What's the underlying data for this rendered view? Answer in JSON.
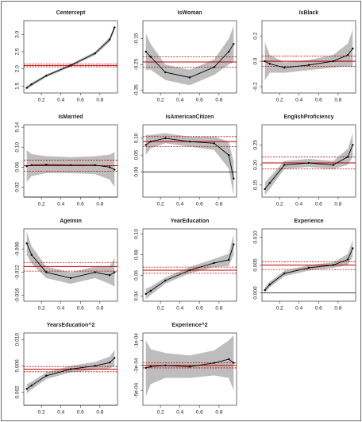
{
  "chart_data": [
    {
      "type": "line",
      "title": "Centercept",
      "x": [
        0.05,
        0.1,
        0.25,
        0.5,
        0.75,
        0.9,
        0.95
      ],
      "values": [
        1.45,
        1.55,
        1.8,
        2.1,
        2.45,
        2.85,
        3.2
      ],
      "lower": [
        1.4,
        1.5,
        1.76,
        2.06,
        2.4,
        2.78,
        3.1
      ],
      "upper": [
        1.5,
        1.6,
        1.84,
        2.14,
        2.5,
        2.92,
        3.3
      ],
      "ols": 2.1,
      "ols_ci": [
        2.06,
        2.14
      ],
      "xlim": [
        0.02,
        0.98
      ],
      "ylim": [
        1.3,
        3.4
      ],
      "xticks": [
        0.2,
        0.4,
        0.6,
        0.8
      ],
      "yticks": [
        {
          "value": 1.5,
          "label": "1.5"
        },
        {
          "value": 2.0,
          "label": "2.0"
        },
        {
          "value": 2.5,
          "label": "2.5"
        },
        {
          "value": 3.0,
          "label": "3.0"
        }
      ],
      "line_color": "#000000",
      "band_color": "#bdbdbd",
      "ols_color": "#c00000"
    },
    {
      "type": "line",
      "title": "IsWoman",
      "x": [
        0.05,
        0.1,
        0.25,
        0.5,
        0.75,
        0.9,
        0.95
      ],
      "values": [
        -0.2,
        -0.22,
        -0.28,
        -0.3,
        -0.26,
        -0.2,
        -0.17
      ],
      "lower": [
        -0.27,
        -0.27,
        -0.31,
        -0.33,
        -0.29,
        -0.25,
        -0.24
      ],
      "upper": [
        -0.13,
        -0.17,
        -0.25,
        -0.27,
        -0.23,
        -0.15,
        -0.1
      ],
      "ols": -0.24,
      "ols_ci": [
        -0.26,
        -0.22
      ],
      "xlim": [
        0.02,
        0.98
      ],
      "ylim": [
        -0.36,
        -0.08
      ],
      "xticks": [
        0.2,
        0.4,
        0.6,
        0.8
      ],
      "yticks": [
        -0.35,
        -0.25,
        -0.15
      ],
      "line_color": "#000000",
      "band_color": "#bdbdbd",
      "ols_color": "#c00000"
    },
    {
      "type": "line",
      "title": "IsBlack",
      "x": [
        0.05,
        0.1,
        0.25,
        0.5,
        0.75,
        0.9,
        0.95
      ],
      "values": [
        0.0,
        -0.02,
        -0.05,
        -0.03,
        0.0,
        0.05,
        0.1
      ],
      "lower": [
        -0.15,
        -0.09,
        -0.09,
        -0.07,
        -0.05,
        -0.04,
        -0.05
      ],
      "upper": [
        0.15,
        0.05,
        -0.01,
        0.01,
        0.05,
        0.14,
        0.25
      ],
      "ols": 0.0,
      "ols_ci": [
        -0.04,
        0.04
      ],
      "xlim": [
        0.02,
        0.98
      ],
      "ylim": [
        -0.25,
        0.32
      ],
      "xticks": [
        0.2,
        0.4,
        0.6,
        0.8
      ],
      "yticks": [
        {
          "value": -0.2,
          "label": "-0.2"
        },
        {
          "value": 0.0,
          "label": "0.0"
        },
        {
          "value": 0.2,
          "label": "0.2"
        }
      ],
      "line_color": "#000000",
      "band_color": "#bdbdbd",
      "ols_color": "#c00000"
    },
    {
      "type": "line",
      "title": "IsMarried",
      "x": [
        0.05,
        0.1,
        0.25,
        0.5,
        0.75,
        0.9,
        0.95
      ],
      "values": [
        0.062,
        0.064,
        0.065,
        0.064,
        0.064,
        0.06,
        0.055
      ],
      "lower": [
        0.03,
        0.042,
        0.048,
        0.048,
        0.046,
        0.035,
        0.02
      ],
      "upper": [
        0.094,
        0.086,
        0.082,
        0.08,
        0.082,
        0.085,
        0.09
      ],
      "ols": 0.063,
      "ols_ci": [
        0.052,
        0.074
      ],
      "xlim": [
        0.02,
        0.98
      ],
      "ylim": [
        0.0,
        0.145
      ],
      "xticks": [
        0.2,
        0.4,
        0.6,
        0.8
      ],
      "yticks": [
        0.02,
        0.06,
        {
          "value": 0.1,
          "label": "0.10"
        },
        0.14
      ],
      "line_color": "#000000",
      "band_color": "#bdbdbd",
      "ols_color": "#c00000"
    },
    {
      "type": "line",
      "title": "IsAmericanCitizen",
      "x": [
        0.05,
        0.1,
        0.25,
        0.5,
        0.75,
        0.9,
        0.95
      ],
      "values": [
        0.08,
        0.09,
        0.1,
        0.09,
        0.085,
        0.05,
        -0.02
      ],
      "lower": [
        0.05,
        0.07,
        0.085,
        0.075,
        0.065,
        0.01,
        -0.07
      ],
      "upper": [
        0.11,
        0.11,
        0.115,
        0.105,
        0.105,
        0.09,
        0.03
      ],
      "ols": 0.09,
      "ols_ci": [
        0.075,
        0.105
      ],
      "xlim": [
        0.02,
        0.98
      ],
      "ylim": [
        -0.075,
        0.14
      ],
      "xticks": [
        0.2,
        0.4,
        0.6,
        0.8
      ],
      "yticks": [
        {
          "value": 0.0,
          "label": "0.00"
        },
        0.05,
        {
          "value": 0.1,
          "label": "0.10"
        }
      ],
      "line_color": "#000000",
      "band_color": "#bdbdbd",
      "ols_color": "#c00000"
    },
    {
      "type": "line",
      "title": "EnglishProficiency",
      "x": [
        0.05,
        0.1,
        0.25,
        0.5,
        0.75,
        0.9,
        0.95
      ],
      "values": [
        0.14,
        0.155,
        0.2,
        0.205,
        0.2,
        0.22,
        0.25
      ],
      "lower": [
        0.125,
        0.14,
        0.19,
        0.195,
        0.19,
        0.2,
        0.22
      ],
      "upper": [
        0.155,
        0.17,
        0.21,
        0.215,
        0.21,
        0.24,
        0.28
      ],
      "ols": 0.205,
      "ols_ci": [
        0.19,
        0.22
      ],
      "xlim": [
        0.02,
        0.98
      ],
      "ylim": [
        0.12,
        0.3
      ],
      "xticks": [
        0.2,
        0.4,
        0.6,
        0.8
      ],
      "yticks": [
        0.15,
        {
          "value": 0.2,
          "label": "0.20"
        },
        0.25
      ],
      "line_color": "#000000",
      "band_color": "#bdbdbd",
      "ols_color": "#c00000"
    },
    {
      "type": "line",
      "title": "AgeImm",
      "x": [
        0.05,
        0.1,
        0.25,
        0.5,
        0.75,
        0.9,
        0.95
      ],
      "values": [
        -0.007,
        -0.009,
        -0.012,
        -0.013,
        -0.012,
        -0.0125,
        -0.012
      ],
      "lower": [
        -0.009,
        -0.0105,
        -0.013,
        -0.014,
        -0.013,
        -0.014,
        -0.0145
      ],
      "upper": [
        -0.005,
        -0.0075,
        -0.011,
        -0.012,
        -0.011,
        -0.011,
        -0.0095
      ],
      "ols": -0.011,
      "ols_ci": [
        -0.0118,
        -0.0103
      ],
      "xlim": [
        0.02,
        0.98
      ],
      "ylim": [
        -0.017,
        -0.0045
      ],
      "xticks": [
        0.2,
        0.4,
        0.6,
        0.8
      ],
      "yticks": [
        -0.016,
        -0.012,
        -0.008
      ],
      "line_color": "#000000",
      "band_color": "#bdbdbd",
      "ols_color": "#c00000"
    },
    {
      "type": "line",
      "title": "YearEducation",
      "x": [
        0.05,
        0.1,
        0.25,
        0.5,
        0.75,
        0.9,
        0.95
      ],
      "values": [
        0.042,
        0.045,
        0.055,
        0.065,
        0.072,
        0.075,
        0.09
      ],
      "lower": [
        0.037,
        0.041,
        0.052,
        0.062,
        0.068,
        0.069,
        0.08
      ],
      "upper": [
        0.047,
        0.049,
        0.058,
        0.068,
        0.076,
        0.081,
        0.1
      ],
      "ols": 0.065,
      "ols_ci": [
        0.062,
        0.068
      ],
      "xlim": [
        0.02,
        0.98
      ],
      "ylim": [
        0.035,
        0.105
      ],
      "xticks": [
        0.2,
        0.4,
        0.6,
        0.8
      ],
      "yticks": [
        0.04,
        0.06,
        0.08,
        {
          "value": 0.1,
          "label": "0.10"
        }
      ],
      "line_color": "#000000",
      "band_color": "#bdbdbd",
      "ols_color": "#c00000"
    },
    {
      "type": "line",
      "title": "Experience",
      "x": [
        0.05,
        0.1,
        0.25,
        0.5,
        0.75,
        0.9,
        0.95
      ],
      "values": [
        0.0005,
        0.0015,
        0.0035,
        0.0045,
        0.005,
        0.006,
        0.008
      ],
      "lower": [
        0.0,
        0.001,
        0.003,
        0.004,
        0.0045,
        0.005,
        0.0065
      ],
      "upper": [
        0.001,
        0.002,
        0.004,
        0.005,
        0.0055,
        0.007,
        0.0095
      ],
      "ols": 0.005,
      "ols_ci": [
        0.0042,
        0.0056
      ],
      "xlim": [
        0.02,
        0.98
      ],
      "ylim": [
        -0.0015,
        0.0115
      ],
      "xticks": [
        0.2,
        0.4,
        0.6,
        0.8
      ],
      "yticks": [
        {
          "value": 0.0,
          "label": "0.000"
        },
        0.005,
        {
          "value": 0.01,
          "label": "0.010"
        }
      ],
      "line_color": "#000000",
      "band_color": "#bdbdbd",
      "ols_color": "#c00000"
    },
    {
      "type": "line",
      "title": "YearsEducation^2",
      "x": [
        0.05,
        0.1,
        0.25,
        0.5,
        0.75,
        0.9,
        0.95
      ],
      "values": [
        0.0025,
        0.003,
        0.0045,
        0.0055,
        0.006,
        0.0065,
        0.0072
      ],
      "lower": [
        0.0018,
        0.0024,
        0.004,
        0.005,
        0.0054,
        0.0056,
        0.006
      ],
      "upper": [
        0.0032,
        0.0036,
        0.005,
        0.006,
        0.0066,
        0.0074,
        0.0084
      ],
      "ols": 0.0055,
      "ols_ci": [
        0.0051,
        0.0059
      ],
      "xlim": [
        0.02,
        0.98
      ],
      "ylim": [
        0.0,
        0.011
      ],
      "xticks": [
        0.2,
        0.4,
        0.6,
        0.8
      ],
      "yticks": [
        0.002,
        0.006,
        {
          "value": 0.01,
          "label": "0.010"
        }
      ],
      "line_color": "#000000",
      "band_color": "#bdbdbd",
      "ols_color": "#c00000"
    },
    {
      "type": "line",
      "title": "Experience^2",
      "x": [
        0.05,
        0.1,
        0.25,
        0.5,
        0.75,
        0.9,
        0.95
      ],
      "values": [
        -0.00032,
        -0.00031,
        -0.0003,
        -0.00031,
        -0.00028,
        -0.00025,
        -0.00028
      ],
      "lower": [
        -0.00055,
        -0.00045,
        -0.0004,
        -0.0004,
        -0.00038,
        -0.0004,
        -0.0005
      ],
      "upper": [
        -0.0001,
        -0.00017,
        -0.0002,
        -0.00022,
        -0.00018,
        -0.0001,
        -6e-05
      ],
      "ols": -0.0003,
      "ols_ci": [
        -0.00032,
        -0.00028
      ],
      "xlim": [
        0.02,
        0.98
      ],
      "ylim": [
        -0.00062,
        -4e-05
      ],
      "xticks": [
        0.2,
        0.4,
        0.6,
        0.8
      ],
      "yticks": [
        {
          "value": -0.0005,
          "label": "-5e-04"
        },
        {
          "value": -0.0003,
          "label": "-3e-04"
        },
        {
          "value": -0.0001,
          "label": "-1e-04"
        }
      ],
      "line_color": "#000000",
      "band_color": "#bdbdbd",
      "ols_color": "#c00000"
    }
  ]
}
